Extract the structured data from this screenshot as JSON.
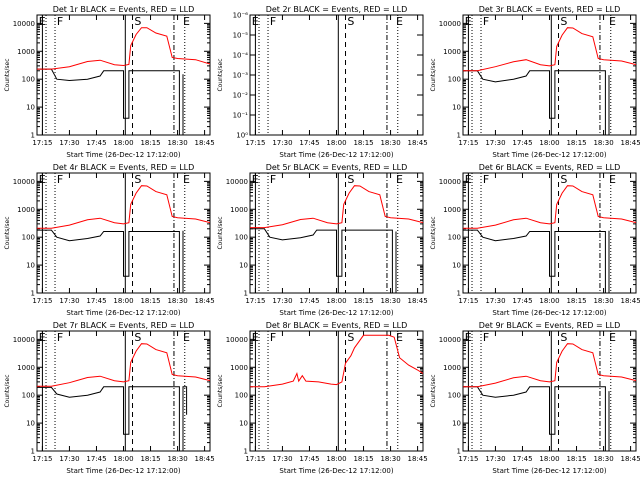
{
  "chart_data": [
    {
      "type": "line",
      "title": "Det 1r BLACK = Events, RED = LLD",
      "ylabel": "Counts/sec",
      "xlabel": "Start Time (26-Dec-12 17:12:00)",
      "yscale": "log",
      "ytick_labels": [
        "10000",
        "1000",
        "100",
        "10",
        "1"
      ],
      "xtick_labels": [
        "17:15",
        "17:30",
        "17:45",
        "18:00",
        "18:15",
        "18:30",
        "18:45"
      ],
      "markers": [
        "E",
        "F",
        "S",
        "E"
      ],
      "series": [
        {
          "name": "LLD",
          "color": "#ff0000",
          "x": [
            "17:12",
            "17:20",
            "17:30",
            "17:40",
            "17:47",
            "17:55",
            "18:00",
            "18:03",
            "18:04",
            "18:07",
            "18:10",
            "18:13",
            "18:18",
            "18:24",
            "18:27",
            "18:30",
            "18:40",
            "18:48"
          ],
          "values": [
            230,
            230,
            280,
            430,
            480,
            330,
            310,
            340,
            1600,
            4000,
            7000,
            7000,
            4500,
            3500,
            600,
            550,
            500,
            350
          ]
        },
        {
          "name": "Events",
          "color": "#000000",
          "x": [
            "17:12",
            "17:20",
            "17:23",
            "17:30",
            "17:40",
            "17:47",
            "17:49",
            "18:00",
            "18:00",
            "18:03",
            "18:03",
            "18:31",
            "18:31",
            "18:33",
            "18:33"
          ],
          "values": [
            230,
            230,
            100,
            90,
            100,
            130,
            200,
            200,
            4,
            4,
            200,
            200,
            1,
            1,
            150
          ]
        }
      ]
    },
    {
      "type": "line",
      "title": "Det 2r BLACK = Events, RED = LLD",
      "ylabel": "Counts/sec",
      "xlabel": "Start Time (26-Dec-12 17:12:00)",
      "yscale": "linear",
      "ytick_labels": [
        "10⁻⁶",
        "10⁻⁵",
        "10⁻⁴",
        "10⁻³",
        "10⁻²",
        "10⁻¹",
        "10⁰"
      ],
      "xtick_labels": [
        "17:15",
        "17:30",
        "17:45",
        "18:00",
        "18:15",
        "18:30",
        "18:45"
      ],
      "markers": [
        "E",
        "F",
        "S",
        "E"
      ],
      "series": []
    },
    {
      "type": "line",
      "title": "Det 3r BLACK = Events, RED = LLD",
      "ylabel": "Counts/sec",
      "xlabel": "Start Time (26-Dec-12 17:12:00)",
      "yscale": "log",
      "ytick_labels": [
        "10000",
        "1000",
        "100",
        "10",
        "1"
      ],
      "xtick_labels": [
        "17:15",
        "17:30",
        "17:45",
        "18:00",
        "18:15",
        "18:30",
        "18:45"
      ],
      "markers": [
        "E",
        "F",
        "S",
        "E"
      ],
      "series": [
        {
          "name": "LLD",
          "color": "#ff0000",
          "x": [
            "17:12",
            "17:20",
            "17:30",
            "17:40",
            "17:47",
            "17:55",
            "18:00",
            "18:03",
            "18:04",
            "18:07",
            "18:10",
            "18:13",
            "18:18",
            "18:24",
            "18:27",
            "18:30",
            "18:40",
            "18:48"
          ],
          "values": [
            200,
            200,
            280,
            420,
            500,
            330,
            300,
            330,
            1500,
            3800,
            7000,
            6800,
            4300,
            3300,
            550,
            500,
            450,
            330
          ]
        },
        {
          "name": "Events",
          "color": "#000000",
          "x": [
            "17:12",
            "17:20",
            "17:23",
            "17:30",
            "17:40",
            "17:47",
            "17:49",
            "18:00",
            "18:00",
            "18:03",
            "18:03",
            "18:31",
            "18:31",
            "18:33",
            "18:33"
          ],
          "values": [
            200,
            200,
            100,
            80,
            100,
            130,
            200,
            200,
            4,
            4,
            200,
            200,
            1,
            1,
            140
          ]
        }
      ]
    },
    {
      "type": "line",
      "title": "Det 4r BLACK = Events, RED = LLD",
      "ylabel": "Counts/sec",
      "xlabel": "Start Time (26-Dec-12 17:12:00)",
      "yscale": "log",
      "ytick_labels": [
        "10000",
        "1000",
        "100",
        "10",
        "1"
      ],
      "xtick_labels": [
        "17:15",
        "17:30",
        "17:45",
        "18:00",
        "18:15",
        "18:30",
        "18:45"
      ],
      "markers": [
        "E",
        "F",
        "S",
        "E"
      ],
      "series": [
        {
          "name": "LLD",
          "color": "#ff0000",
          "x": [
            "17:12",
            "17:20",
            "17:30",
            "17:40",
            "17:47",
            "17:55",
            "18:00",
            "18:03",
            "18:04",
            "18:07",
            "18:10",
            "18:13",
            "18:18",
            "18:24",
            "18:27",
            "18:30",
            "18:40",
            "18:48"
          ],
          "values": [
            210,
            210,
            270,
            420,
            480,
            330,
            300,
            330,
            1500,
            3800,
            7000,
            6800,
            4300,
            3300,
            550,
            500,
            450,
            330
          ]
        },
        {
          "name": "Events",
          "color": "#000000",
          "x": [
            "17:12",
            "17:20",
            "17:23",
            "17:30",
            "17:40",
            "17:47",
            "17:49",
            "18:00",
            "18:00",
            "18:03",
            "18:03",
            "18:31",
            "18:31",
            "18:33",
            "18:33"
          ],
          "values": [
            180,
            180,
            100,
            75,
            90,
            110,
            160,
            160,
            4,
            4,
            160,
            160,
            1,
            1,
            170
          ]
        }
      ]
    },
    {
      "type": "line",
      "title": "Det 5r BLACK = Events, RED = LLD",
      "ylabel": "Counts/sec",
      "xlabel": "Start Time (26-Dec-12 17:12:00)",
      "yscale": "log",
      "ytick_labels": [
        "10000",
        "1000",
        "100",
        "10",
        "1"
      ],
      "xtick_labels": [
        "17:15",
        "17:30",
        "17:45",
        "18:00",
        "18:15",
        "18:30",
        "18:45"
      ],
      "markers": [
        "E",
        "F",
        "S",
        "E"
      ],
      "series": [
        {
          "name": "LLD",
          "color": "#ff0000",
          "x": [
            "17:12",
            "17:20",
            "17:30",
            "17:40",
            "17:47",
            "17:55",
            "18:00",
            "18:03",
            "18:04",
            "18:07",
            "18:10",
            "18:13",
            "18:18",
            "18:24",
            "18:27",
            "18:30",
            "18:40",
            "18:48"
          ],
          "values": [
            220,
            220,
            280,
            430,
            480,
            330,
            300,
            330,
            1500,
            3800,
            7000,
            6800,
            4300,
            3300,
            550,
            500,
            450,
            330
          ]
        },
        {
          "name": "Events",
          "color": "#000000",
          "x": [
            "17:12",
            "17:20",
            "17:23",
            "17:30",
            "17:40",
            "17:47",
            "17:49",
            "18:00",
            "18:00",
            "18:03",
            "18:03",
            "18:31",
            "18:31",
            "18:33",
            "18:33"
          ],
          "values": [
            200,
            200,
            100,
            80,
            95,
            120,
            180,
            180,
            4,
            4,
            180,
            180,
            1,
            1,
            160
          ]
        }
      ]
    },
    {
      "type": "line",
      "title": "Det 6r BLACK = Events, RED = LLD",
      "ylabel": "Counts/sec",
      "xlabel": "Start Time (26-Dec-12 17:12:00)",
      "yscale": "log",
      "ytick_labels": [
        "10000",
        "1000",
        "100",
        "10",
        "1"
      ],
      "xtick_labels": [
        "17:15",
        "17:30",
        "17:45",
        "18:00",
        "18:15",
        "18:30",
        "18:45"
      ],
      "markers": [
        "E",
        "F",
        "S",
        "E"
      ],
      "series": [
        {
          "name": "LLD",
          "color": "#ff0000",
          "x": [
            "17:12",
            "17:20",
            "17:30",
            "17:40",
            "17:47",
            "17:55",
            "18:00",
            "18:03",
            "18:04",
            "18:07",
            "18:10",
            "18:13",
            "18:18",
            "18:24",
            "18:27",
            "18:30",
            "18:40",
            "18:48"
          ],
          "values": [
            210,
            210,
            270,
            420,
            480,
            330,
            300,
            330,
            1500,
            3800,
            7000,
            6800,
            4300,
            3300,
            550,
            500,
            450,
            330
          ]
        },
        {
          "name": "Events",
          "color": "#000000",
          "x": [
            "17:12",
            "17:20",
            "17:23",
            "17:30",
            "17:40",
            "17:47",
            "17:49",
            "18:00",
            "18:00",
            "18:03",
            "18:03",
            "18:31",
            "18:31",
            "18:33",
            "18:33"
          ],
          "values": [
            180,
            180,
            100,
            75,
            90,
            110,
            160,
            160,
            4,
            4,
            160,
            160,
            1,
            1,
            170
          ]
        }
      ]
    },
    {
      "type": "line",
      "title": "Det 7r BLACK = Events, RED = LLD",
      "ylabel": "Counts/sec",
      "xlabel": "Start Time (26-Dec-12 17:12:00)",
      "yscale": "log",
      "ytick_labels": [
        "10000",
        "1000",
        "100",
        "10",
        "1"
      ],
      "xtick_labels": [
        "17:15",
        "17:30",
        "17:45",
        "18:00",
        "18:15",
        "18:30",
        "18:45"
      ],
      "markers": [
        "E",
        "F",
        "S",
        "E"
      ],
      "series": [
        {
          "name": "LLD",
          "color": "#ff0000",
          "x": [
            "17:12",
            "17:20",
            "17:30",
            "17:40",
            "17:47",
            "17:55",
            "18:00",
            "18:03",
            "18:04",
            "18:07",
            "18:10",
            "18:13",
            "18:18",
            "18:24",
            "18:27",
            "18:30",
            "18:40",
            "18:48"
          ],
          "values": [
            210,
            210,
            280,
            430,
            480,
            330,
            300,
            330,
            1500,
            3800,
            7000,
            6800,
            4300,
            3300,
            550,
            500,
            450,
            330
          ]
        },
        {
          "name": "Events",
          "color": "#000000",
          "x": [
            "17:12",
            "17:20",
            "17:23",
            "17:30",
            "17:40",
            "17:47",
            "17:49",
            "18:00",
            "18:00",
            "18:03",
            "18:03",
            "18:31",
            "18:31",
            "18:33",
            "18:33",
            "18:35",
            "18:35"
          ],
          "values": [
            190,
            190,
            110,
            85,
            100,
            130,
            200,
            200,
            4,
            4,
            200,
            200,
            1,
            1,
            200,
            200,
            20
          ]
        }
      ]
    },
    {
      "type": "line",
      "title": "Det 8r BLACK = Events, RED = LLD",
      "ylabel": "Counts/sec",
      "xlabel": "Start Time (26-Dec-12 17:12:00)",
      "yscale": "log",
      "ytick_labels": [
        "10000",
        "1000",
        "100",
        "10",
        "1"
      ],
      "xtick_labels": [
        "17:15",
        "17:30",
        "17:45",
        "18:00",
        "18:15",
        "18:30",
        "18:45"
      ],
      "markers": [
        "E",
        "F",
        "S",
        "E"
      ],
      "series": [
        {
          "name": "LLD",
          "color": "#ff0000",
          "x": [
            "17:12",
            "17:20",
            "17:30",
            "17:36",
            "17:38",
            "17:39",
            "17:41",
            "17:43",
            "17:50",
            "17:57",
            "18:00",
            "18:03",
            "18:05",
            "18:08",
            "18:10",
            "18:15",
            "18:20",
            "18:26",
            "18:29",
            "18:32",
            "18:35",
            "18:40",
            "18:45",
            "18:48"
          ],
          "values": [
            200,
            200,
            250,
            320,
            600,
            320,
            500,
            320,
            300,
            250,
            240,
            300,
            1400,
            2600,
            5000,
            14000,
            14000,
            14000,
            14000,
            12000,
            2200,
            1200,
            800,
            600
          ]
        },
        {
          "name": "Events",
          "color": "#000000",
          "x": [
            "17:12",
            "18:48"
          ],
          "values": [
            20000,
            20000
          ]
        }
      ]
    },
    {
      "type": "line",
      "title": "Det 9r BLACK = Events, RED = LLD",
      "ylabel": "Counts/sec",
      "xlabel": "Start Time (26-Dec-12 17:12:00)",
      "yscale": "log",
      "ytick_labels": [
        "10000",
        "1000",
        "100",
        "10",
        "1"
      ],
      "xtick_labels": [
        "17:15",
        "17:30",
        "17:45",
        "18:00",
        "18:15",
        "18:30",
        "18:45"
      ],
      "markers": [
        "E",
        "F",
        "S",
        "E"
      ],
      "series": [
        {
          "name": "LLD",
          "color": "#ff0000",
          "x": [
            "17:12",
            "17:20",
            "17:30",
            "17:40",
            "17:47",
            "17:55",
            "18:00",
            "18:03",
            "18:04",
            "18:07",
            "18:10",
            "18:13",
            "18:18",
            "18:24",
            "18:27",
            "18:30",
            "18:40",
            "18:48"
          ],
          "values": [
            200,
            200,
            270,
            420,
            480,
            330,
            300,
            330,
            1500,
            3800,
            7000,
            6800,
            4300,
            3300,
            550,
            500,
            450,
            330
          ]
        },
        {
          "name": "Events",
          "color": "#000000",
          "x": [
            "17:12",
            "17:20",
            "17:23",
            "17:30",
            "17:40",
            "17:47",
            "17:49",
            "18:00",
            "18:00",
            "18:03",
            "18:03",
            "18:31",
            "18:31",
            "18:33",
            "18:33"
          ],
          "values": [
            200,
            200,
            100,
            85,
            100,
            130,
            200,
            200,
            4,
            4,
            200,
            200,
            1,
            1,
            140
          ]
        }
      ]
    }
  ]
}
